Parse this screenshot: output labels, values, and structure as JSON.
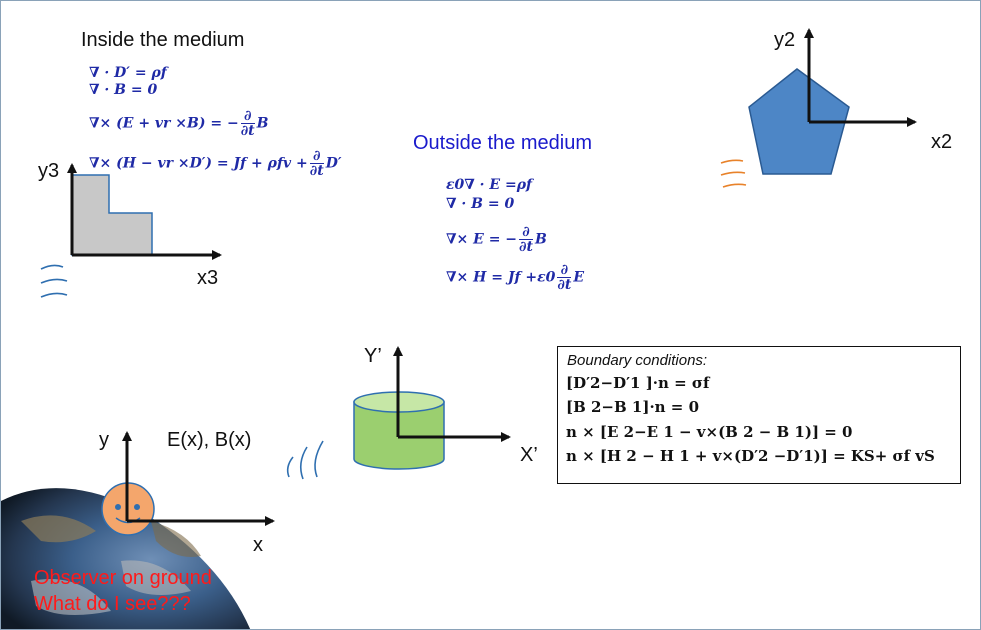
{
  "inside": {
    "title": "Inside the medium",
    "eq1": "∇ · D′ = ρf",
    "eq2": "∇ · B = 0",
    "eq3a": "∇× (E + vr ×B) = −",
    "eq3b": "B",
    "eq4a": "∇× (H − vr ×D′) = Jf + ρfv +",
    "eq4b": "D′"
  },
  "outside": {
    "title": "Outside the medium",
    "eq1": "ε0∇ · E =ρf",
    "eq2": "∇ · B = 0",
    "eq3a": "∇× E = −",
    "eq3b": "B",
    "eq4a": "∇× H = Jf +ε0",
    "eq4b": "E"
  },
  "fraction": {
    "num": "∂",
    "den": "∂t"
  },
  "axes": {
    "x2": "x2",
    "y2": "y2",
    "x3": "x3",
    "y3": "y3",
    "xp": "X’",
    "yp": "Y’",
    "x": "x",
    "y": "y"
  },
  "fields_label": "E(x), B(x)",
  "boundary": {
    "title": "Boundary conditions:",
    "line1": "[D′2−D′1 ]·n = σf",
    "line2": "[B 2−B 1]·n = 0",
    "line3": "n × [E 2−E 1 − v×(B 2 − B 1)] = 0",
    "line4": "n × [H 2 − H 1 + v×(D′2 −D′1)] = KS+ σf vS"
  },
  "observer": {
    "line1": "Observer on ground",
    "line2": "What do I see???"
  },
  "colors": {
    "pentagon": "#4d86c6",
    "staircase": "#c8c8c8",
    "cylinder": "#9bcf6f",
    "face": "#f4a66c",
    "observer_text": "#ff1a1a",
    "outside_text": "#1a1acc",
    "wave_blue": "#2f6fb0",
    "wave_orange": "#e8822a"
  }
}
